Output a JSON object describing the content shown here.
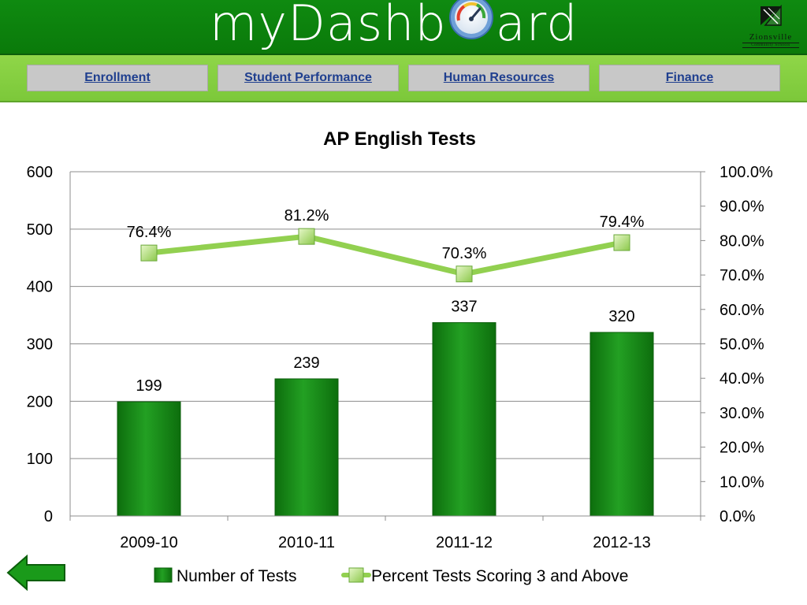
{
  "header": {
    "brand_left": "myDashb",
    "brand_right": "ard",
    "logo_text": "Zionsville",
    "logo_subtext": "Community Schools"
  },
  "nav": {
    "tabs": [
      {
        "label": "Enrollment"
      },
      {
        "label": "Student Performance"
      },
      {
        "label": "Human Resources"
      },
      {
        "label": "Finance"
      }
    ]
  },
  "chart_data": {
    "type": "bar",
    "title": "AP English Tests",
    "categories": [
      "2009-10",
      "2010-11",
      "2011-12",
      "2012-13"
    ],
    "series": [
      {
        "name": "Number of Tests",
        "type": "bar",
        "axis": "left",
        "values": [
          199,
          239,
          337,
          320
        ],
        "labels": [
          "199",
          "239",
          "337",
          "320"
        ],
        "color": "#1a8a1a"
      },
      {
        "name": "Percent Tests Scoring 3 and Above",
        "type": "line",
        "axis": "right",
        "values": [
          76.4,
          81.2,
          70.3,
          79.4
        ],
        "labels": [
          "76.4%",
          "81.2%",
          "70.3%",
          "79.4%"
        ],
        "color": "#92d050"
      }
    ],
    "y_left": {
      "min": 0,
      "max": 600,
      "ticks": [
        0,
        100,
        200,
        300,
        400,
        500,
        600
      ],
      "tick_labels": [
        "0",
        "100",
        "200",
        "300",
        "400",
        "500",
        "600"
      ]
    },
    "y_right": {
      "min": 0,
      "max": 100,
      "ticks": [
        0,
        10,
        20,
        30,
        40,
        50,
        60,
        70,
        80,
        90,
        100
      ],
      "tick_labels": [
        "0.0%",
        "10.0%",
        "20.0%",
        "30.0%",
        "40.0%",
        "50.0%",
        "60.0%",
        "70.0%",
        "80.0%",
        "90.0%",
        "100.0%"
      ]
    },
    "grid": true,
    "legend_position": "bottom"
  }
}
